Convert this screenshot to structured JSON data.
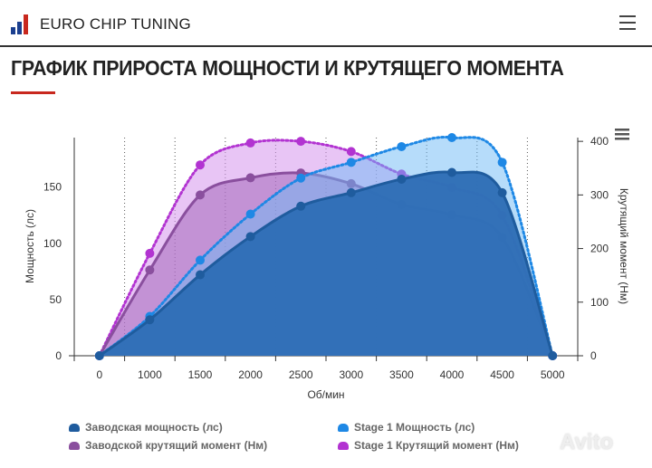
{
  "header": {
    "brand": "EURO CHIP TUNING",
    "menu_icon": "hamburger-icon"
  },
  "page_title": "ГРАФИК ПРИРОСТА МОЩНОСТИ И КРУТЯЩЕГО МОМЕНТА",
  "watermark": "Avito",
  "chart_data": {
    "type": "area",
    "xlabel": "Об/мин",
    "ylabel_left": "Мощность (лс)",
    "ylabel_right": "Крутящий момент (Нм)",
    "categories": [
      "0",
      "1000",
      "1500",
      "2000",
      "2500",
      "3000",
      "3500",
      "4000",
      "4500",
      "5000"
    ],
    "yticks_left": [
      0,
      50,
      100,
      150
    ],
    "yticks_right": [
      0,
      100,
      200,
      300,
      400
    ],
    "ylim_left": [
      0,
      194
    ],
    "ylim_right": [
      0,
      407
    ],
    "legend_position": "bottom",
    "series": [
      {
        "name": "Stage 1 Крутящий момент (Нм)",
        "axis": "right",
        "style": "dotted",
        "color": "#b233d1",
        "values": [
          0,
          191,
          356,
          397,
          400,
          381,
          339,
          314,
          262,
          0
        ]
      },
      {
        "name": "Заводской крутящий момент (Нм)",
        "axis": "right",
        "style": "solid",
        "color": "#8a4f9e",
        "values": [
          0,
          160,
          300,
          332,
          341,
          321,
          282,
          263,
          221,
          0
        ]
      },
      {
        "name": "Stage 1 Мощность (лс)",
        "axis": "left",
        "style": "dotted",
        "color": "#1e88e5",
        "values": [
          0,
          35,
          85,
          126,
          158,
          172,
          186,
          194,
          172,
          0
        ]
      },
      {
        "name": "Заводская мощность (лс)",
        "axis": "left",
        "style": "solid",
        "color": "#1f5c9e",
        "values": [
          0,
          32,
          72,
          106,
          133,
          145,
          157,
          163,
          145,
          0
        ]
      }
    ],
    "legend": [
      {
        "label": "Заводская мощность (лс)",
        "color": "#1f5c9e"
      },
      {
        "label": "Stage 1 Мощность (лс)",
        "color": "#1e88e5"
      },
      {
        "label": "Заводской крутящий момент (Нм)",
        "color": "#8a4f9e"
      },
      {
        "label": "Stage 1 Крутящий момент (Нм)",
        "color": "#b233d1"
      }
    ],
    "export_menu_icon": "hamburger-icon"
  }
}
